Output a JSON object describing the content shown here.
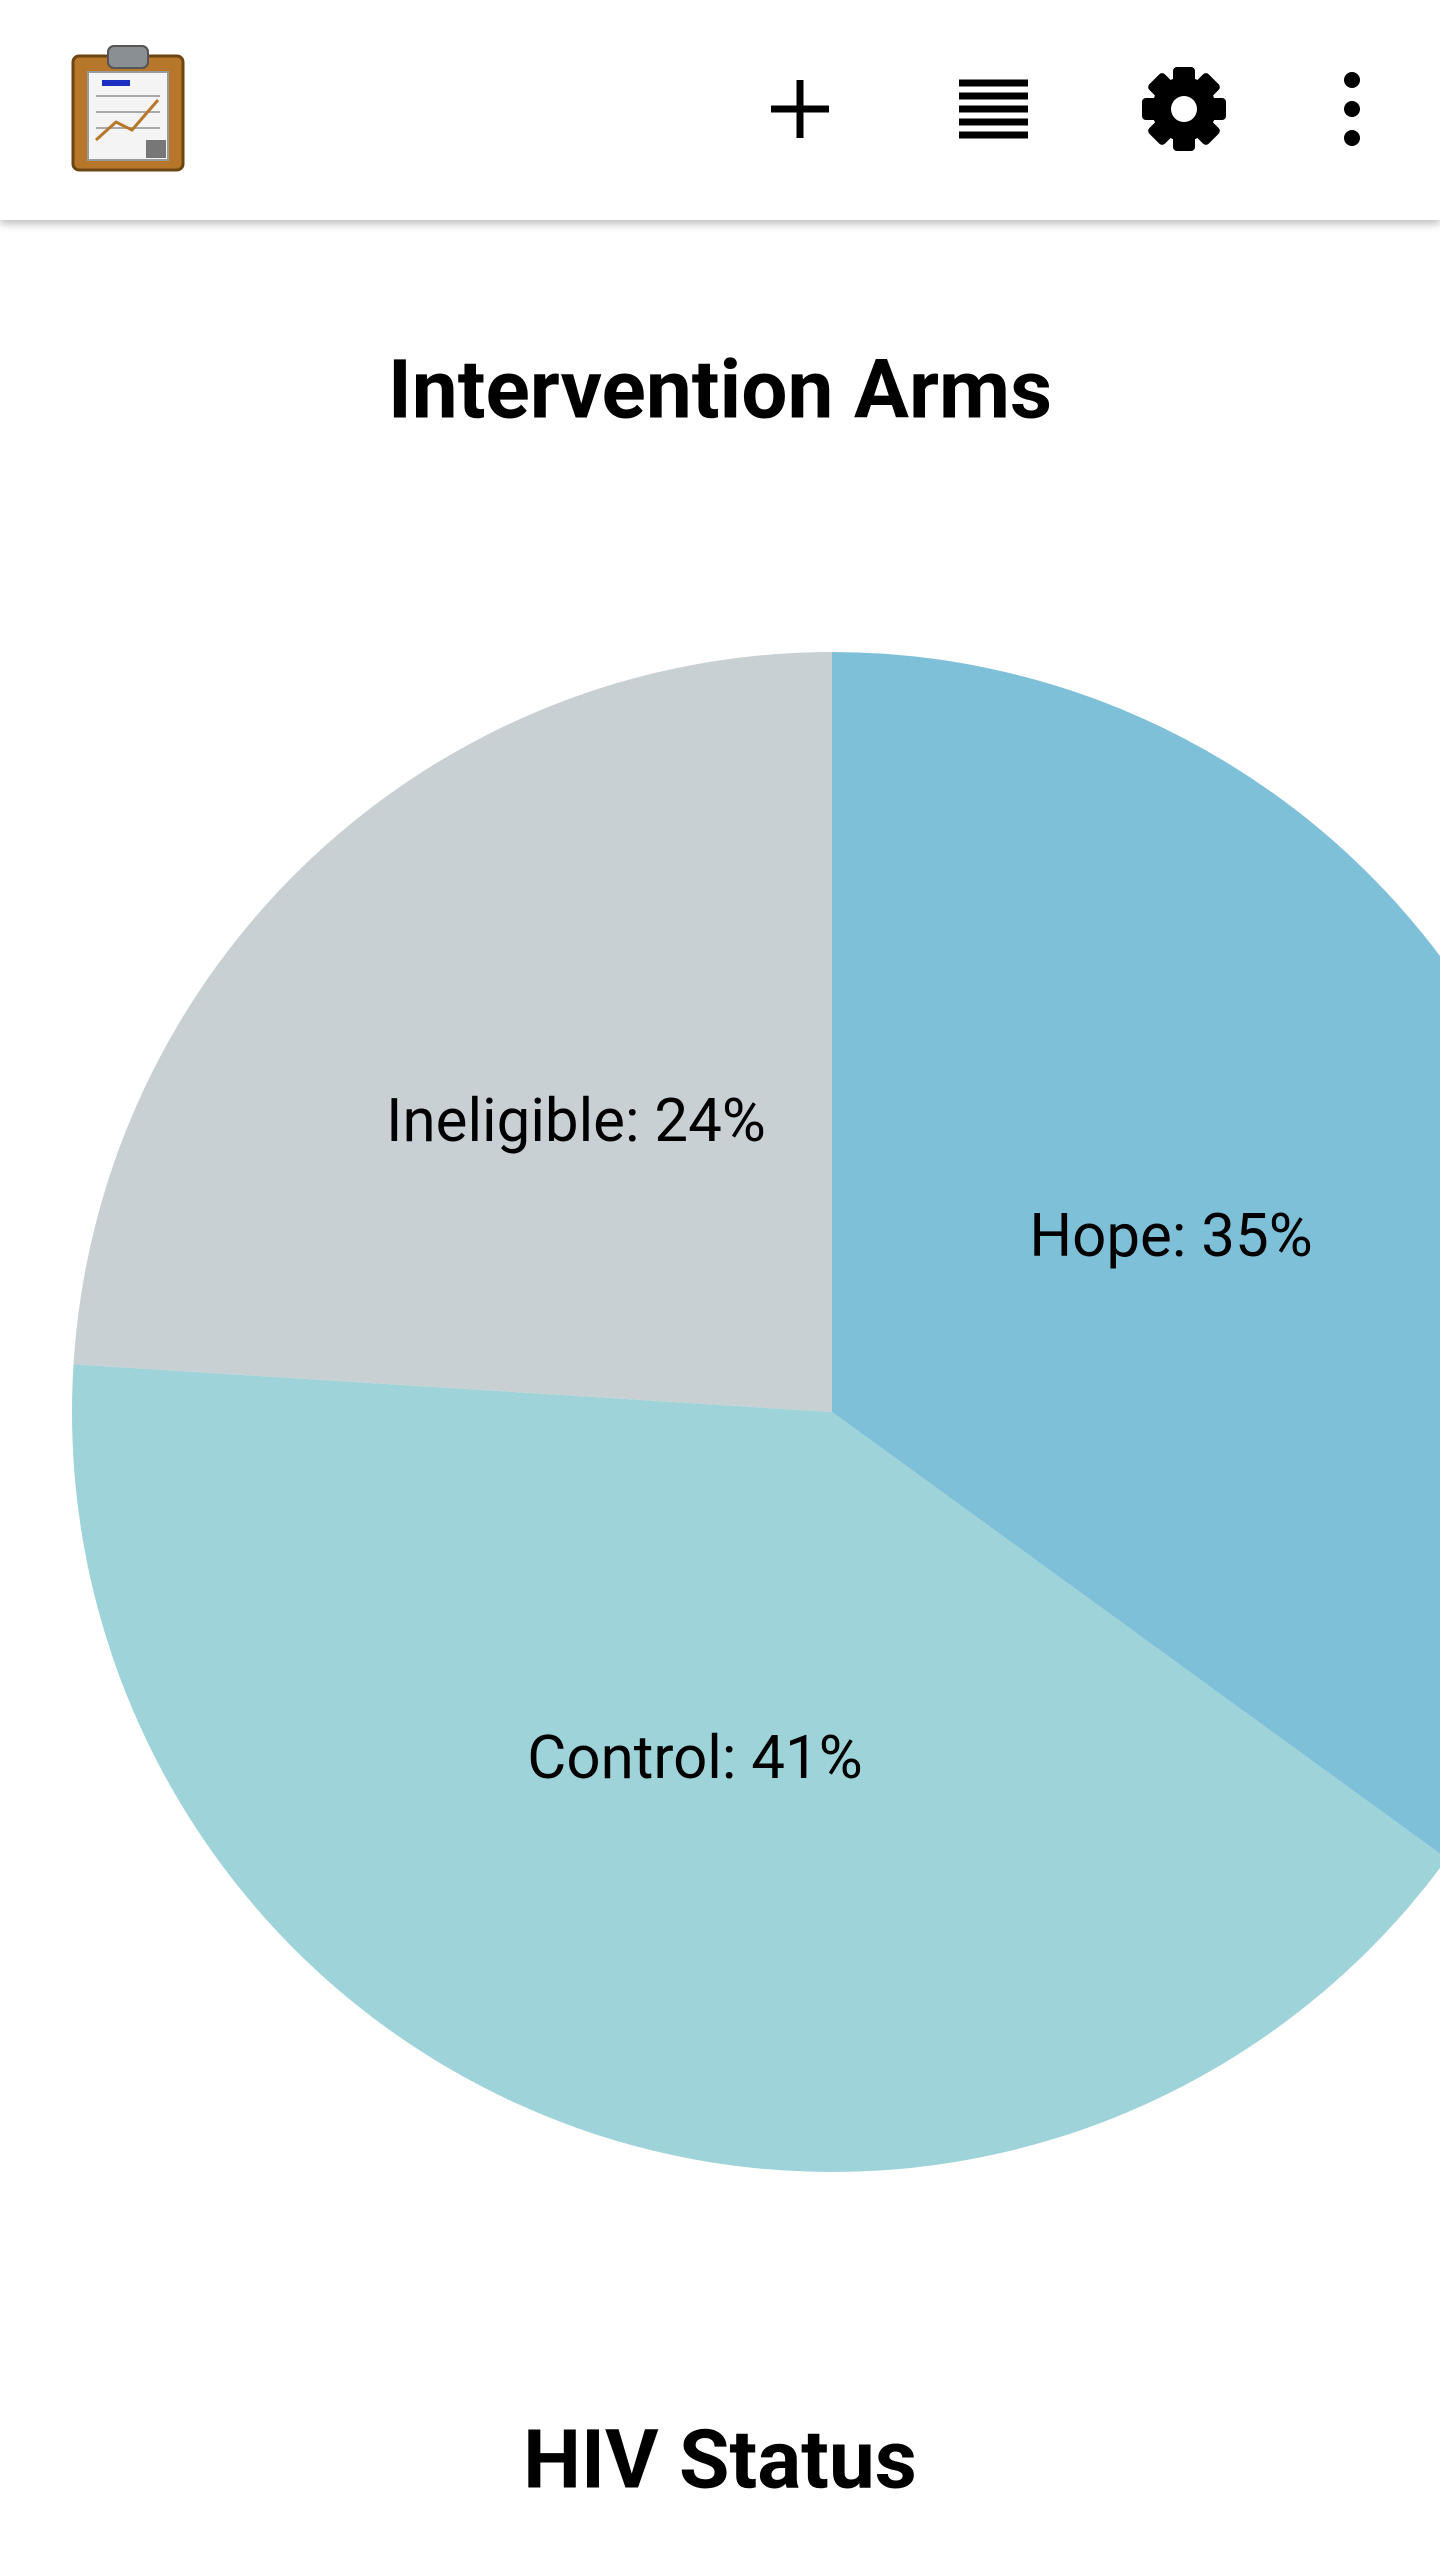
{
  "chart_data": [
    {
      "type": "pie",
      "title": "Intervention Arms",
      "values": [
        35,
        41,
        24
      ],
      "value_labels": [
        "Hope: 35%",
        "Control: 41%",
        "Ineligible: 24%"
      ],
      "colors": [
        "#7fc0d9",
        "#9dd3d9",
        "#c8d0d3"
      ]
    },
    {
      "type": "pie",
      "title": "HIV Status"
    }
  ]
}
